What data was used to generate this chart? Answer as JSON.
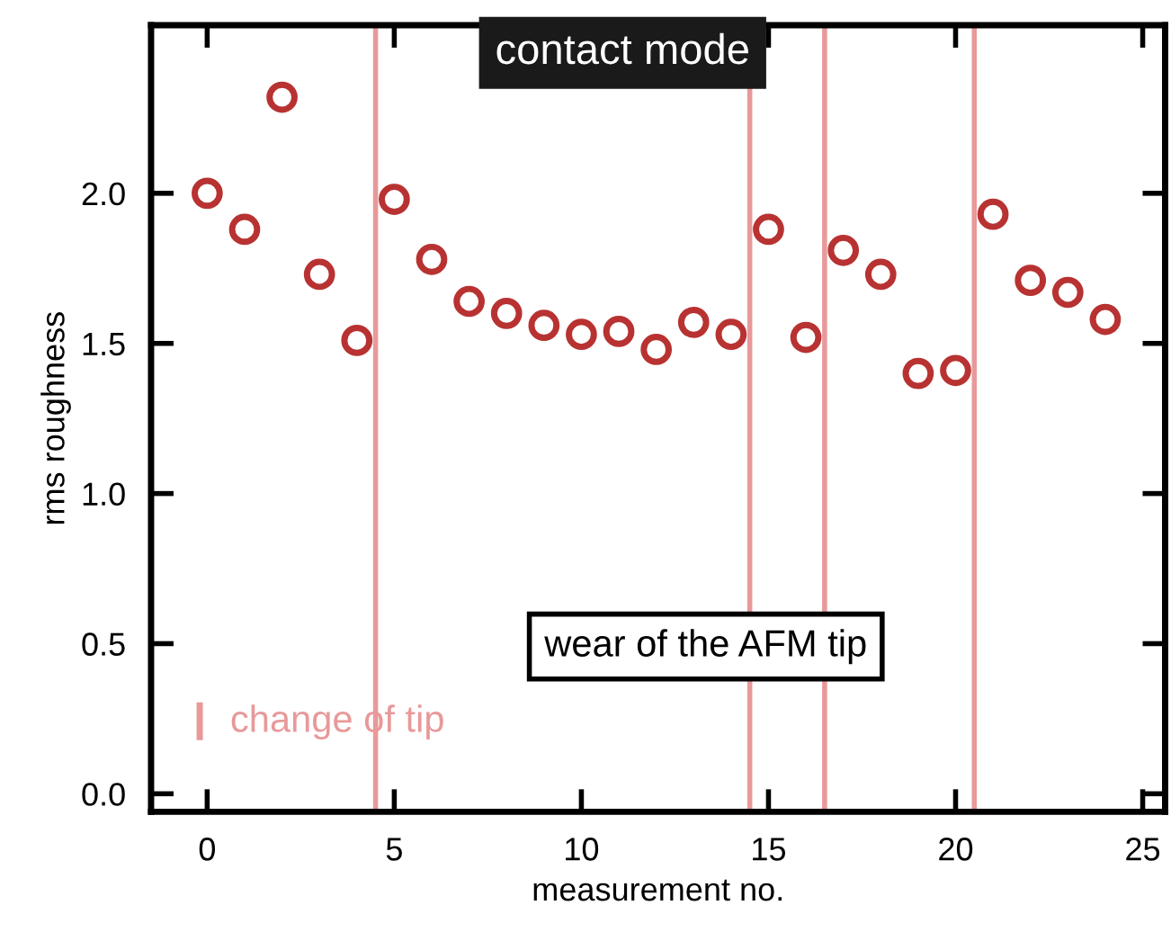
{
  "chart_data": {
    "type": "scatter",
    "xlabel": "measurement no.",
    "ylabel": "rms roughness",
    "x": [
      0,
      1,
      2,
      3,
      4,
      5,
      6,
      7,
      8,
      9,
      10,
      11,
      12,
      13,
      14,
      15,
      16,
      17,
      18,
      19,
      20,
      21,
      22,
      23,
      24
    ],
    "series": [
      {
        "color": "#b83232",
        "values": [
          2.0,
          1.88,
          2.32,
          1.73,
          1.51,
          1.98,
          1.78,
          1.64,
          1.6,
          1.56,
          1.53,
          1.54,
          1.48,
          1.57,
          1.53,
          1.88,
          1.52,
          1.81,
          1.73,
          1.4,
          1.41,
          1.93,
          1.71,
          1.67,
          1.58
        ]
      }
    ],
    "marker": "circle",
    "xlim": [
      -1.5,
      25.6
    ],
    "ylim": [
      -0.06,
      2.56
    ],
    "xticks": [
      0,
      5,
      10,
      15,
      20,
      25
    ],
    "yticks": [
      {
        "value": 0,
        "label": "0.0"
      },
      0.5,
      {
        "value": 1,
        "label": "1.0"
      },
      1.5,
      {
        "value": 2,
        "label": "2.0"
      }
    ],
    "ref_lines": [
      {
        "axis": "x",
        "value": 4.5,
        "color": "#e8999a"
      },
      {
        "axis": "x",
        "value": 14.5,
        "color": "#e8999a"
      },
      {
        "axis": "x",
        "value": 16.5,
        "color": "#e8999a"
      },
      {
        "axis": "x",
        "value": 20.5,
        "color": "#e8999a"
      }
    ],
    "annotations": [
      "contact mode",
      "wear of the AFM tip",
      "change of tip"
    ],
    "grid": false,
    "legend": false
  }
}
